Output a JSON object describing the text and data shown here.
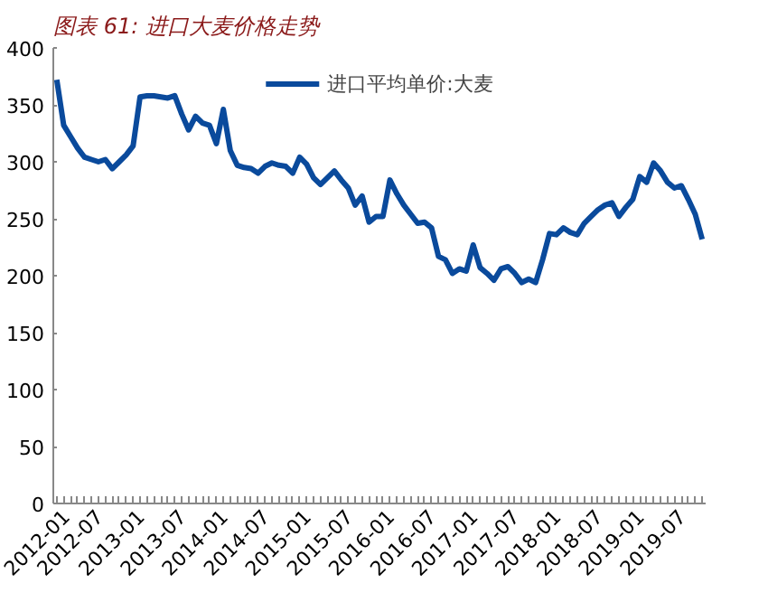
{
  "chart_data": {
    "type": "line",
    "title": "图表 61: 进口大麦价格走势",
    "categories": [
      "2012-01",
      null,
      null,
      null,
      null,
      null,
      "2012-07",
      null,
      null,
      null,
      null,
      null,
      "2013-01",
      null,
      null,
      null,
      null,
      null,
      "2013-07",
      null,
      null,
      null,
      null,
      null,
      "2014-01",
      null,
      null,
      null,
      null,
      null,
      "2014-07",
      null,
      null,
      null,
      null,
      null,
      "2015-01",
      null,
      null,
      null,
      null,
      null,
      "2015-07",
      null,
      null,
      null,
      null,
      null,
      "2016-01",
      null,
      null,
      null,
      null,
      null,
      "2016-07",
      null,
      null,
      null,
      null,
      null,
      "2017-01",
      null,
      null,
      null,
      null,
      null,
      "2017-07",
      null,
      null,
      null,
      null,
      null,
      "2018-01",
      null,
      null,
      null,
      null,
      null,
      "2018-07",
      null,
      null,
      null,
      null,
      null,
      "2019-01",
      null,
      null,
      null,
      null,
      null,
      "2019-07",
      null,
      null,
      null
    ],
    "series": [
      {
        "name": "进口平均单价:大麦",
        "color": "#0a4a9c",
        "values": [
          372,
          332,
          322,
          312,
          304,
          302,
          300,
          302,
          294,
          300,
          306,
          314,
          357,
          358,
          358,
          357,
          356,
          358,
          342,
          328,
          340,
          334,
          332,
          316,
          346,
          310,
          297,
          295,
          294,
          290,
          296,
          299,
          297,
          296,
          290,
          304,
          298,
          286,
          280,
          286,
          292,
          284,
          277,
          262,
          270,
          247,
          252,
          252,
          284,
          272,
          262,
          254,
          246,
          247,
          242,
          217,
          214,
          202,
          206,
          204,
          227,
          207,
          202,
          196,
          206,
          208,
          202,
          194,
          197,
          194,
          214,
          237,
          236,
          242,
          238,
          236,
          246,
          252,
          258,
          262,
          264,
          252,
          260,
          267,
          287,
          282,
          299,
          292,
          282,
          277,
          279,
          267,
          254,
          232
        ]
      }
    ],
    "ylim": [
      0,
      400
    ],
    "yticks": [
      0,
      50,
      100,
      150,
      200,
      250,
      300,
      350,
      400
    ],
    "grid": false,
    "legend": "top",
    "marker": "none",
    "line_style": "solid"
  }
}
